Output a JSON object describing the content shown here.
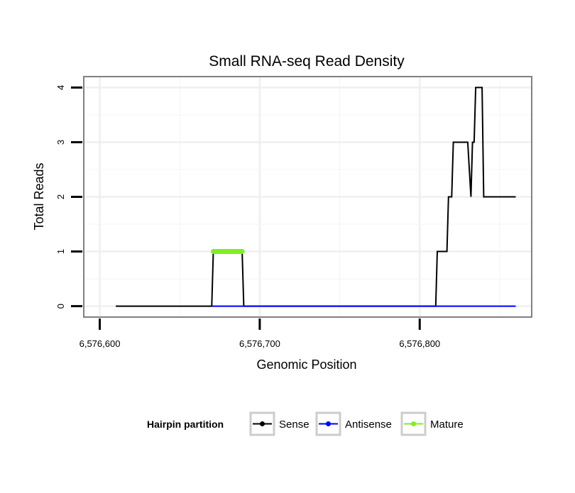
{
  "chart_data": {
    "type": "line",
    "title": "Small RNA-seq Read Density",
    "xlabel": "Genomic Position",
    "ylabel": "Total Reads",
    "xlim": [
      6576590,
      6576870
    ],
    "ylim": [
      -0.2,
      4.2
    ],
    "x_ticks": [
      6576600,
      6576700,
      6576800
    ],
    "x_tick_labels": [
      "6,576,600",
      "6,576,700",
      "6,576,800"
    ],
    "y_ticks": [
      0,
      1,
      2,
      3,
      4
    ],
    "y_tick_labels": [
      "0",
      "1",
      "2",
      "3",
      "4"
    ],
    "grid": true,
    "legend": {
      "title": "Hairpin partition",
      "position": "bottom",
      "entries": [
        {
          "name": "Sense",
          "color": "#000000"
        },
        {
          "name": "Antisense",
          "color": "#0000ff"
        },
        {
          "name": "Mature",
          "color": "#80ee20"
        }
      ]
    },
    "series": [
      {
        "name": "Sense",
        "color": "#000000",
        "x": [
          6576610,
          6576670,
          6576671,
          6576689,
          6576690,
          6576810,
          6576811,
          6576817,
          6576818,
          6576820,
          6576821,
          6576830,
          6576832,
          6576833,
          6576834,
          6576835,
          6576836,
          6576839,
          6576840,
          6576860
        ],
        "y": [
          0,
          0,
          1,
          1,
          0,
          0,
          1,
          1,
          2,
          2,
          3,
          3,
          2,
          3,
          3,
          4,
          4,
          4,
          2,
          2
        ]
      },
      {
        "name": "Antisense",
        "color": "#0000ff",
        "x": [
          6576670,
          6576690,
          6576810,
          6576860
        ],
        "y": [
          0,
          0,
          0,
          0
        ]
      },
      {
        "name": "Mature",
        "color": "#80ee20",
        "x": [
          6576671,
          6576689
        ],
        "y": [
          1,
          1
        ]
      }
    ]
  }
}
